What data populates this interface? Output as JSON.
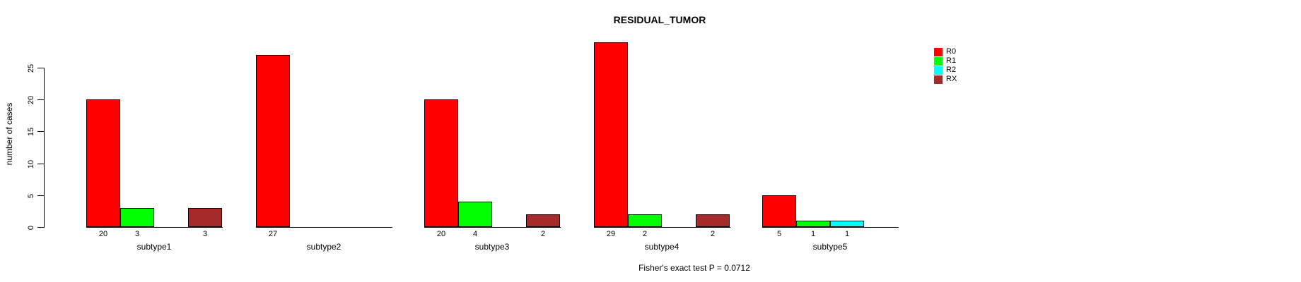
{
  "chart_data": {
    "type": "bar",
    "title": "RESIDUAL_TUMOR",
    "ylabel": "number of cases",
    "xlabel": "",
    "footnote": "Fisher's exact test P = 0.0712",
    "categories": [
      "subtype1",
      "subtype2",
      "subtype3",
      "subtype4",
      "subtype5"
    ],
    "series": [
      {
        "name": "R0",
        "color": "#ff0000",
        "values": [
          20,
          27,
          20,
          29,
          5
        ]
      },
      {
        "name": "R1",
        "color": "#00ff00",
        "values": [
          3,
          0,
          4,
          2,
          1
        ]
      },
      {
        "name": "R2",
        "color": "#00ffff",
        "values": [
          0,
          0,
          0,
          0,
          1
        ]
      },
      {
        "name": "RX",
        "color": "#a52a2a",
        "values": [
          3,
          0,
          2,
          2,
          0
        ]
      }
    ],
    "yticks": [
      0,
      5,
      10,
      15,
      20,
      25
    ],
    "ylim": [
      0,
      29
    ],
    "grid": false,
    "legend_position": "top-right",
    "value_labels": "shown under axis for non-zero bars",
    "axis_color": "#000000",
    "bar_border_color": "#000000",
    "background_color": "#ffffff"
  }
}
